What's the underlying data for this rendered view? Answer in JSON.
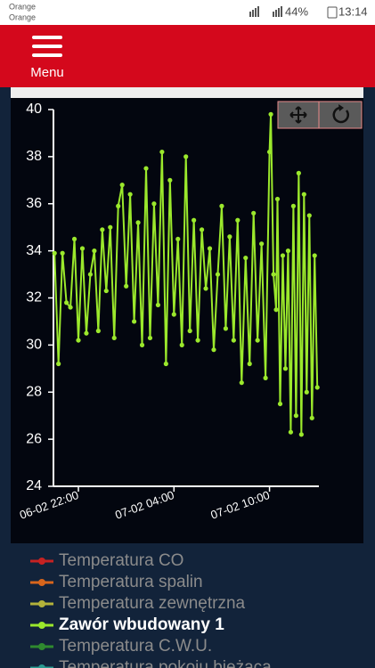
{
  "status_bar": {
    "carriers": [
      "Orange",
      "Orange"
    ],
    "battery": "44%",
    "time": "13:14"
  },
  "header": {
    "menu": "Menu"
  },
  "chart_data": {
    "type": "line",
    "x": [
      "06-02 20:30",
      "06-02 20:45",
      "06-02 21:00",
      "06-02 21:15",
      "06-02 21:30",
      "06-02 21:45",
      "06-02 22:00",
      "06-02 22:15",
      "06-02 22:30",
      "06-02 22:45",
      "06-02 23:00",
      "06-02 23:15",
      "06-02 23:30",
      "06-02 23:45",
      "07-02 00:00",
      "07-02 00:15",
      "07-02 00:30",
      "07-02 00:45",
      "07-02 01:00",
      "07-02 01:15",
      "07-02 01:30",
      "07-02 01:45",
      "07-02 02:00",
      "07-02 02:15",
      "07-02 02:30",
      "07-02 02:45",
      "07-02 03:00",
      "07-02 03:15",
      "07-02 03:30",
      "07-02 03:45",
      "07-02 04:00",
      "07-02 04:15",
      "07-02 04:30",
      "07-02 04:45",
      "07-02 05:00",
      "07-02 05:15",
      "07-02 05:30",
      "07-02 05:45",
      "07-02 06:00",
      "07-02 06:15",
      "07-02 06:30",
      "07-02 06:45",
      "07-02 07:00",
      "07-02 07:15",
      "07-02 07:30",
      "07-02 07:45",
      "07-02 08:00",
      "07-02 08:15",
      "07-02 08:30",
      "07-02 08:45",
      "07-02 09:00",
      "07-02 09:15",
      "07-02 09:30",
      "07-02 09:45",
      "07-02 10:00",
      "07-02 10:05",
      "07-02 10:15",
      "07-02 10:25",
      "07-02 10:30",
      "07-02 10:40",
      "07-02 10:50",
      "07-02 11:00",
      "07-02 11:10",
      "07-02 11:20",
      "07-02 11:30",
      "07-02 11:40",
      "07-02 11:50",
      "07-02 12:00",
      "07-02 12:10",
      "07-02 12:20",
      "07-02 12:30",
      "07-02 12:40",
      "07-02 12:50",
      "07-02 13:00"
    ],
    "series": [
      {
        "name": "Zawór wbudowany 1",
        "color": "#9be82c",
        "values": [
          33.9,
          29.2,
          33.9,
          31.8,
          31.6,
          34.5,
          30.2,
          34.1,
          30.5,
          33.0,
          34.0,
          30.6,
          34.9,
          32.3,
          35.0,
          30.3,
          35.9,
          36.8,
          32.5,
          36.4,
          31.0,
          35.2,
          30.0,
          37.5,
          30.3,
          36.0,
          31.7,
          38.2,
          29.2,
          37.0,
          31.3,
          34.5,
          30.0,
          38.0,
          30.6,
          35.3,
          30.2,
          34.9,
          32.4,
          34.1,
          29.8,
          33.0,
          35.9,
          30.7,
          34.6,
          30.2,
          35.3,
          28.4,
          33.7,
          29.2,
          35.6,
          30.2,
          34.3,
          28.6,
          38.2,
          39.8,
          33.0,
          31.5,
          36.2,
          27.5,
          33.8,
          29.0,
          34.0,
          26.3,
          35.9,
          27.0,
          37.3,
          26.2,
          36.4,
          28.0,
          35.5,
          26.9,
          33.8,
          28.2
        ]
      }
    ],
    "hidden_series": [
      {
        "name": "Temperatura CO",
        "color": "#c62222"
      },
      {
        "name": "Temperatura spalin",
        "color": "#d8661c"
      },
      {
        "name": "Temperatura zewnętrzna",
        "color": "#b3b23a"
      },
      {
        "name": "Temperatura C.W.U.",
        "color": "#2f8a2f"
      },
      {
        "name": "Temperatura pokoju bieżąca",
        "color": "#2a9a90"
      }
    ],
    "xlim": [
      "06-02 20:26",
      "07-02 13:06"
    ],
    "xticks": [
      "06-02 22:00",
      "07-02 04:00",
      "07-02 10:00"
    ],
    "ylim": [
      24,
      40
    ],
    "yticks": [
      24,
      26,
      28,
      30,
      32,
      34,
      36,
      38,
      40
    ]
  }
}
